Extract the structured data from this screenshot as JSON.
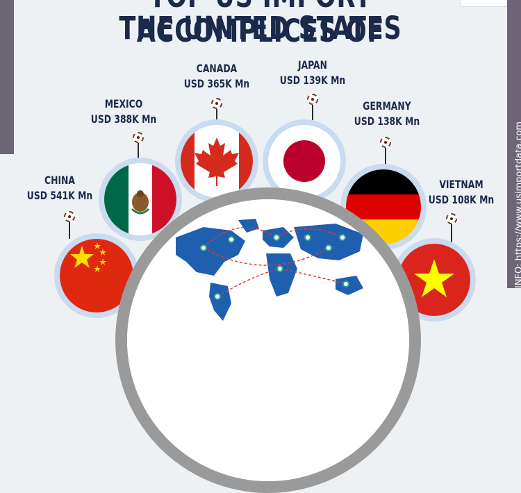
{
  "title": {
    "line1": "TOP US IMPORT ACCOMPLICES OF",
    "line2": "THE UNITED STATES"
  },
  "countries": [
    {
      "name": "CHINA",
      "value": "USD 541K Mn",
      "flag": "china-flag"
    },
    {
      "name": "MEXICO",
      "value": "USD 388K Mn",
      "flag": "mexico-flag"
    },
    {
      "name": "CANADA",
      "value": "USD 365K Mn",
      "flag": "canada-flag"
    },
    {
      "name": "JAPAN",
      "value": "USD 139K Mn",
      "flag": "japan-flag"
    },
    {
      "name": "GERMANY",
      "value": "USD 138K Mn",
      "flag": "germany-flag"
    },
    {
      "name": "VIETNAM",
      "value": "USD 108K Mn",
      "flag": "vietnam-flag"
    }
  ],
  "side_text": "INFO: https://www.usimportdata.com",
  "colors": {
    "title": "#1b2a4a",
    "background": "#eef1f4",
    "accent_bar": "#6e6577",
    "ring": "#c9dbef",
    "map_land": "#1f5fb0",
    "route": "#e0392f"
  }
}
